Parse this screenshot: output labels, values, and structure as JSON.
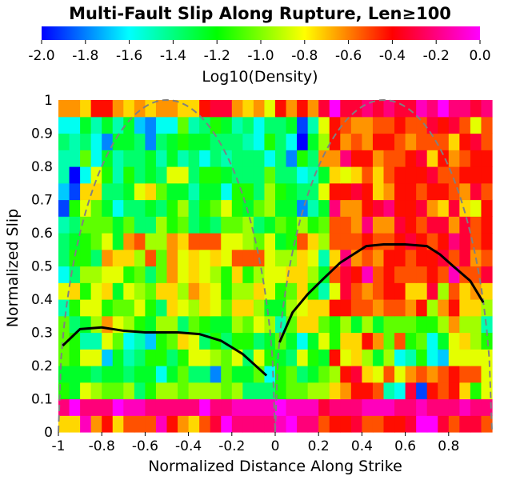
{
  "chart_data": {
    "type": "heatmap",
    "title": "Multi-Fault Slip Along Rupture, Len≥100",
    "xlabel": "Normalized Distance Along Strike",
    "ylabel": "Normalized Slip",
    "xlim": [
      -1,
      1
    ],
    "ylim": [
      0,
      1
    ],
    "x_ticks": [
      "-1",
      "-0.8",
      "-0.6",
      "-0.4",
      "-0.2",
      "0",
      "0.2",
      "0.4",
      "0.6",
      "0.8"
    ],
    "x_tick_values": [
      -1,
      -0.8,
      -0.6,
      -0.4,
      -0.2,
      0,
      0.2,
      0.4,
      0.6,
      0.8
    ],
    "y_ticks": [
      "0",
      "0.1",
      "0.2",
      "0.3",
      "0.4",
      "0.5",
      "0.6",
      "0.7",
      "0.8",
      "0.9",
      "1"
    ],
    "y_tick_values": [
      0,
      0.1,
      0.2,
      0.3,
      0.4,
      0.5,
      0.6,
      0.7,
      0.8,
      0.9,
      1.0
    ],
    "colorbar": {
      "label": "Log10(Density)",
      "range": [
        -2.0,
        0.0
      ],
      "ticks": [
        "-2.0",
        "-1.8",
        "-1.6",
        "-1.4",
        "-1.2",
        "-1.0",
        "-0.8",
        "-0.6",
        "-0.4",
        "-0.2",
        "0.0"
      ],
      "tick_values": [
        -2.0,
        -1.8,
        -1.6,
        -1.4,
        -1.2,
        -1.0,
        -0.8,
        -0.6,
        -0.4,
        -0.2,
        0.0
      ],
      "colors": [
        "#0000ff",
        "#00ffff",
        "#00ff00",
        "#ffff00",
        "#ff0000",
        "#ff00ff"
      ]
    },
    "grid": false,
    "mean_slip": {
      "segments": [
        {
          "x": [
            -0.98,
            -0.9,
            -0.8,
            -0.7,
            -0.6,
            -0.5,
            -0.45,
            -0.35,
            -0.25,
            -0.15,
            -0.04
          ],
          "y": [
            0.26,
            0.31,
            0.315,
            0.305,
            0.3,
            0.3,
            0.3,
            0.295,
            0.275,
            0.235,
            0.17
          ]
        },
        {
          "x": [
            0.02,
            0.08,
            0.15,
            0.22,
            0.3,
            0.36,
            0.42,
            0.5,
            0.6,
            0.7,
            0.76,
            0.82,
            0.9,
            0.96
          ],
          "y": [
            0.27,
            0.36,
            0.415,
            0.46,
            0.51,
            0.535,
            0.56,
            0.565,
            0.565,
            0.56,
            0.535,
            0.5,
            0.455,
            0.39
          ]
        }
      ],
      "color": "#000000"
    },
    "reference_curves": {
      "type": "sqrt_ellipse",
      "segments": [
        {
          "center": -0.5,
          "half_width": 0.5,
          "peak": 1.0
        },
        {
          "center": 0.5,
          "half_width": 0.5,
          "peak": 1.0
        }
      ],
      "color": "#808080",
      "dashed": true
    },
    "grid_resolution": {
      "nx": 40,
      "ny": 20
    },
    "density_rows": [
      "MMSNPMOOOSPNMOQTRRRRSTRROPPQOOPPQTTQOQQO",
      "RTRRRTSSRRRRRTRRSSSSTSSSQRRRSSSRRSRRRSRR",
      "IHLKJJKGIKKJKKKJKGGGIJJKKMNPPOFEQBPOPMIL",
      "HHHGHHGHHEHJGGCJHHJEIJGHJKPQMLOLNONOPOOL",
      "JILLDHFGIIGILLKJLGLIHGLIHPLMKHKEFIEDLLLL",
      "JIFFLJEFDIJMLGIGIIGHJHEHLIMMPNJOIJEHLMKI",
      "JGHKNLKIHKKGJIHHKJLKFJMMJIKHKHJJJIIKNKKF",
      "FILLIJJLIGMLKMLJMMKHHKLMMPPOONOONPKNPMMK",
      "LMILMHLKJMMKNMLIKKMLIJMIFLQONOPPMMQKOMNM",
      "EGKKLLIJGJNLMLKIMIKLLMMKHOQPSOPOOOPOSOOQ",
      "GIIGNMMKOJNLMLMLOOOLKKMLFMRNONPPOPPQOQNO",
      "GHIJLHNOKKNMOOOLLKJLHIOMKOOOPOOPQPOPRQOP",
      "FGJJJHJGGKIJGHGJJKGHJIKIJOONRNNQPOQQNQOP",
      "BILJHEGGHGIKGIJLIHJKHHCFHRNNPQRPPQNMQMLP",
      "DBMMGGHLMJHHFHHEIIGKIHGGLPPQPMNPPOPPONQO",
      "FAELIFIGHGLLGIIHGGGJGGEFHMLMOMOPPPQOOPPP",
      "FFJEHFGGHFHFGEGFGGGEGCIGNNRPPNOOPQMPNOPP",
      "GFGECHHGCGHIHHGGGFEIGEAHKPNONPPONOOOMPQO",
      "EEHFHFHDCEEJFGIHFGEGGHBFLPONNOOPOOQPQOLO",
      "NNMPPNMNMNNMMPQQNMNLPNPNQTQQRQRQQSRTRRQR"
    ],
    "density_encoding": "A..T maps linearly to log10 density -2.0..0.0; row 0 is lowest slip bin (0-0.05), column 0 is x=-1..-0.95"
  }
}
